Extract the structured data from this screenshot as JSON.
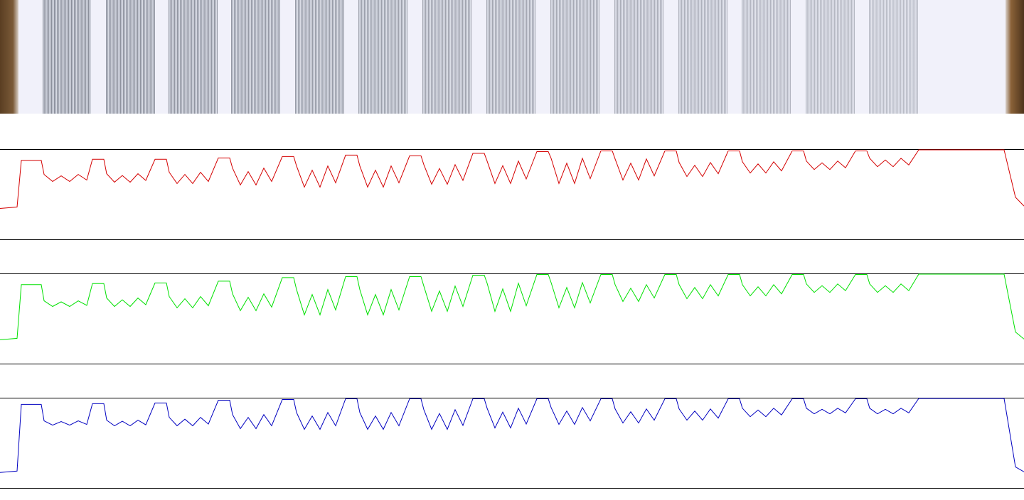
{
  "chart_data": {
    "type": "line",
    "ylim": [
      0,
      255
    ],
    "x": [
      0,
      24,
      30,
      58,
      62,
      74,
      86,
      98,
      110,
      122,
      130,
      146,
      150,
      161,
      172,
      183,
      194,
      205,
      218,
      234,
      238,
      249,
      260,
      271,
      282,
      293,
      307,
      323,
      327,
      338,
      349,
      360,
      371,
      382,
      397,
      413,
      417,
      428,
      439,
      450,
      461,
      472,
      486,
      502,
      506,
      517,
      528,
      539,
      550,
      561,
      576,
      592,
      596,
      607,
      618,
      629,
      640,
      651,
      665,
      681,
      685,
      696,
      707,
      718,
      729,
      740,
      755,
      771,
      775,
      786,
      797,
      808,
      819,
      830,
      845,
      861,
      865,
      876,
      887,
      898,
      909,
      920,
      935,
      951,
      955,
      966,
      977,
      988,
      999,
      1010,
      1024,
      1040,
      1044,
      1055,
      1066,
      1077,
      1088,
      1099,
      1114,
      1130,
      1134,
      1145,
      1156,
      1167,
      1178,
      1189,
      1203,
      1219,
      1223,
      1234,
      1245,
      1256,
      1267,
      1278,
      1292,
      1412,
      1428,
      1440
    ],
    "series": [
      {
        "color": "#d40000",
        "values": [
          88,
          92,
          225,
          225,
          185,
          165,
          181,
          165,
          185,
          169,
          228,
          228,
          187,
          163,
          182,
          163,
          187,
          168,
          228,
          228,
          191,
          159,
          185,
          159,
          191,
          165,
          232,
          232,
          203,
          155,
          193,
          155,
          203,
          165,
          236,
          236,
          209,
          149,
          197,
          149,
          209,
          161,
          240,
          240,
          209,
          149,
          197,
          149,
          209,
          161,
          238,
          238,
          213,
          157,
          202,
          157,
          213,
          168,
          245,
          245,
          223,
          159,
          210,
          159,
          223,
          172,
          250,
          250,
          231,
          159,
          217,
          159,
          231,
          173,
          252,
          252,
          229,
          169,
          217,
          169,
          229,
          181,
          252,
          252,
          219,
          179,
          211,
          179,
          219,
          187,
          252,
          252,
          221,
          189,
          215,
          189,
          221,
          195,
          252,
          252,
          223,
          199,
          218,
          199,
          223,
          204,
          252,
          252,
          231,
          207,
          226,
          207,
          231,
          212,
          255,
          255,
          120,
          95
        ]
      },
      {
        "color": "#00e000",
        "values": [
          68,
          72,
          225,
          225,
          179,
          163,
          176,
          163,
          179,
          166,
          228,
          228,
          187,
          163,
          182,
          163,
          187,
          168,
          230,
          230,
          191,
          159,
          185,
          159,
          191,
          165,
          235,
          235,
          199,
          151,
          189,
          151,
          199,
          161,
          245,
          245,
          211,
          139,
          197,
          139,
          211,
          153,
          248,
          248,
          211,
          139,
          197,
          139,
          211,
          153,
          248,
          248,
          221,
          149,
          207,
          149,
          221,
          163,
          252,
          252,
          229,
          149,
          213,
          149,
          229,
          165,
          254,
          254,
          231,
          159,
          217,
          159,
          231,
          173,
          254,
          254,
          225,
          177,
          215,
          177,
          225,
          187,
          254,
          254,
          225,
          185,
          217,
          185,
          225,
          193,
          254,
          254,
          225,
          193,
          219,
          193,
          225,
          199,
          254,
          254,
          227,
          203,
          222,
          203,
          227,
          208,
          254,
          254,
          227,
          203,
          222,
          203,
          227,
          208,
          255,
          255,
          90,
          70
        ]
      },
      {
        "color": "#0000c0",
        "values": [
          44,
          48,
          238,
          238,
          191,
          179,
          189,
          179,
          191,
          181,
          240,
          240,
          193,
          177,
          190,
          177,
          193,
          180,
          242,
          242,
          201,
          177,
          196,
          177,
          201,
          182,
          250,
          250,
          209,
          169,
          201,
          169,
          209,
          177,
          252,
          252,
          215,
          167,
          205,
          167,
          215,
          177,
          254,
          254,
          215,
          167,
          205,
          167,
          215,
          177,
          254,
          254,
          223,
          167,
          212,
          167,
          223,
          178,
          254,
          254,
          227,
          171,
          216,
          171,
          227,
          182,
          254,
          254,
          229,
          181,
          219,
          181,
          229,
          191,
          254,
          254,
          225,
          185,
          217,
          185,
          225,
          193,
          254,
          254,
          225,
          193,
          219,
          193,
          225,
          199,
          254,
          254,
          227,
          203,
          222,
          203,
          227,
          208,
          254,
          254,
          227,
          211,
          224,
          211,
          227,
          214,
          254,
          254,
          227,
          211,
          224,
          211,
          227,
          214,
          255,
          255,
          60,
          46
        ]
      }
    ]
  }
}
